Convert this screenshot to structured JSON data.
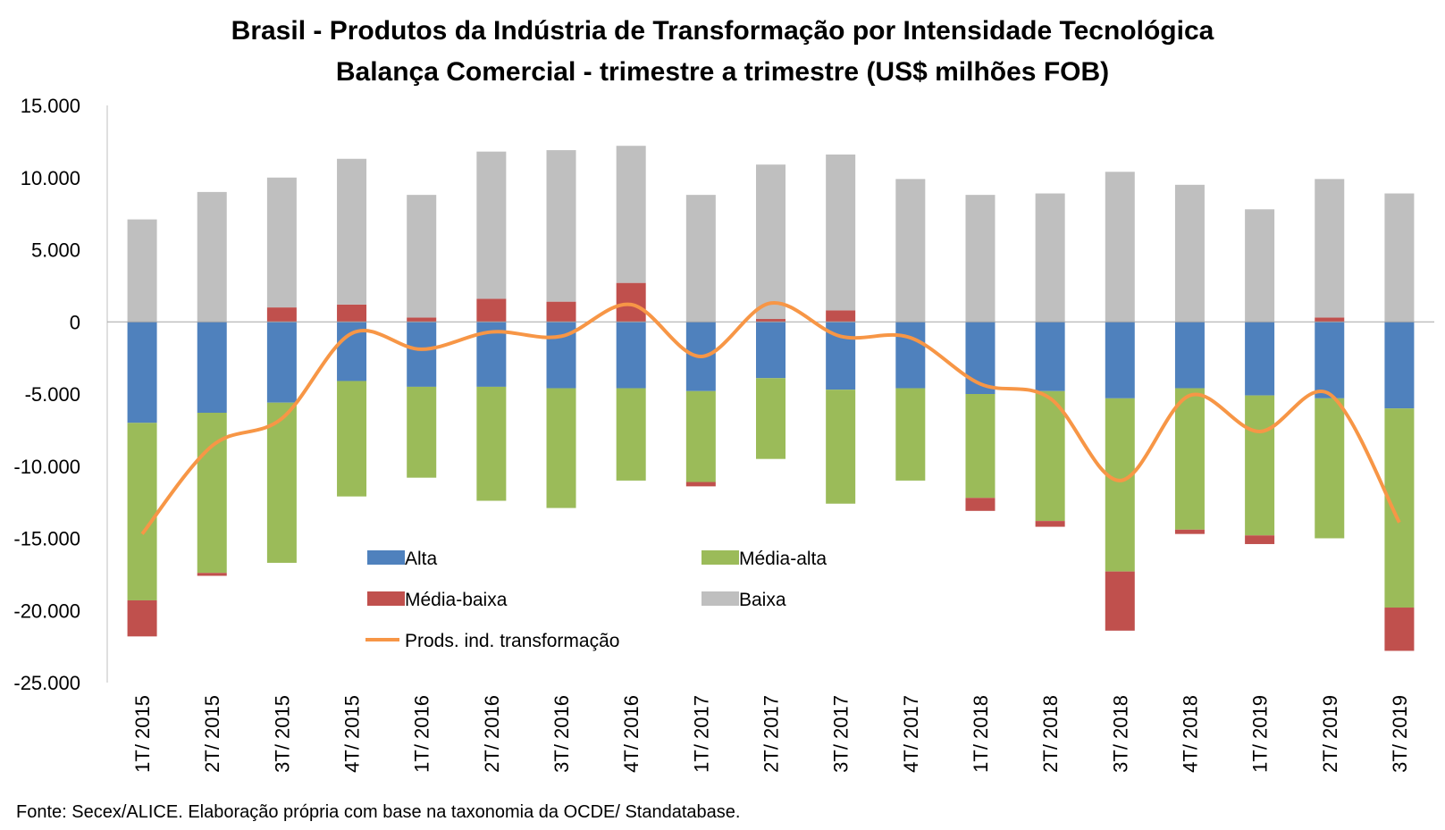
{
  "chart_data": {
    "type": "bar",
    "title": "Brasil - Produtos da Indústria de Transformação por Intensidade Tecnológica",
    "subtitle": "Balança Comercial - trimestre a trimestre (US$ milhões FOB)",
    "source": "Fonte: Secex/ALICE. Elaboração própria com base na taxonomia da OCDE/ Standatabase.",
    "stacked": true,
    "ylim": [
      -25000,
      15000
    ],
    "yticks": [
      15000,
      10000,
      5000,
      0,
      -5000,
      -10000,
      -15000,
      -20000,
      -25000
    ],
    "ytick_labels": [
      "15.000",
      "10.000",
      "5.000",
      "0",
      "-5.000",
      "-10.000",
      "-15.000",
      "-20.000",
      "-25.000"
    ],
    "categories": [
      "1T/ 2015",
      "2T/ 2015",
      "3T/ 2015",
      "4T/ 2015",
      "1T/ 2016",
      "2T/ 2016",
      "3T/ 2016",
      "4T/ 2016",
      "1T/ 2017",
      "2T/ 2017",
      "3T/ 2017",
      "4T/ 2017",
      "1T/ 2018",
      "2T/ 2018",
      "3T/ 2018",
      "4T/ 2018",
      "1T/ 2019",
      "2T/ 2019",
      "3T/ 2019"
    ],
    "series": [
      {
        "name": "Alta",
        "color": "#4F81BD",
        "values": [
          -7000,
          -6300,
          -5600,
          -4100,
          -4500,
          -4500,
          -4600,
          -4600,
          -4800,
          -3900,
          -4700,
          -4600,
          -5000,
          -4800,
          -5300,
          -4600,
          -5100,
          -5300,
          -6000
        ]
      },
      {
        "name": "Média-alta",
        "color": "#9BBB59",
        "values": [
          -12300,
          -11100,
          -11100,
          -8000,
          -6300,
          -7900,
          -8300,
          -6400,
          -6300,
          -5600,
          -7900,
          -6400,
          -7200,
          -9000,
          -12000,
          -9800,
          -9700,
          -9700,
          -13800
        ]
      },
      {
        "name": "Média-baixa",
        "color": "#C0504D",
        "values": [
          -2500,
          -200,
          1000,
          1200,
          300,
          1600,
          1400,
          2700,
          -300,
          200,
          800,
          0,
          -900,
          -400,
          -4100,
          -300,
          -600,
          300,
          -3000
        ]
      },
      {
        "name": "Baixa",
        "color": "#BFBFBF",
        "values": [
          7100,
          9000,
          9000,
          10100,
          8500,
          10200,
          10500,
          9500,
          8800,
          10700,
          10800,
          9900,
          8800,
          8900,
          10400,
          9500,
          7800,
          9600,
          8900
        ]
      },
      {
        "name": "Prods. ind. transformação",
        "type": "line",
        "color": "#F79646",
        "values": [
          -14700,
          -8600,
          -6700,
          -800,
          -1900,
          -700,
          -1000,
          1200,
          -2400,
          1300,
          -1000,
          -1100,
          -4300,
          -5300,
          -11000,
          -5100,
          -7600,
          -5000,
          -13900
        ]
      }
    ],
    "legend_position": "inside-bottom-left",
    "grid": false
  }
}
